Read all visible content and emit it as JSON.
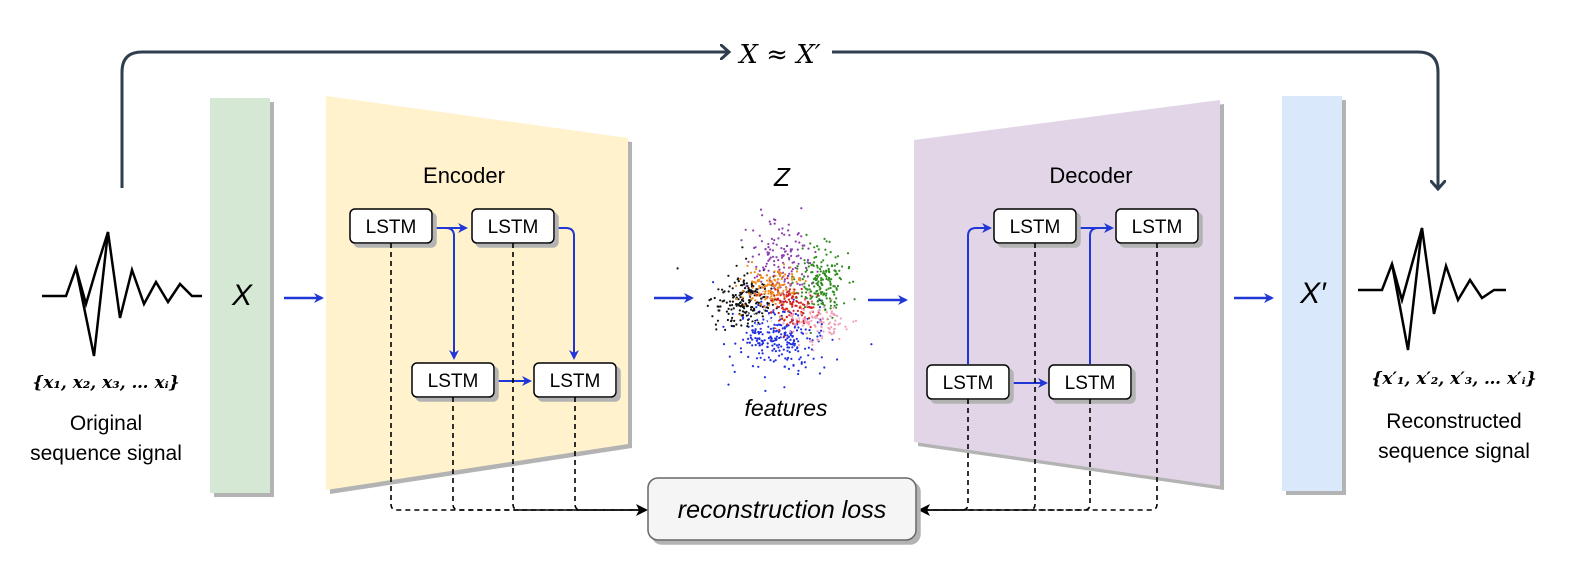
{
  "top_relation": "X ≈ X′",
  "encoder": {
    "title": "Encoder",
    "cells": [
      "LSTM",
      "LSTM",
      "LSTM",
      "LSTM"
    ]
  },
  "decoder": {
    "title": "Decoder",
    "cells": [
      "LSTM",
      "LSTM",
      "LSTM",
      "LSTM"
    ]
  },
  "input_block": {
    "label": "X"
  },
  "output_block": {
    "label": "X′"
  },
  "latent": {
    "symbol": "Z",
    "caption": "features"
  },
  "loss": {
    "label": "reconstruction loss"
  },
  "original": {
    "sequence": "{x₁, x₂, x₃, … xᵢ}",
    "caption_line1": "Original",
    "caption_line2": "sequence signal"
  },
  "reconstructed": {
    "sequence": "{x′₁, x′₂, x′₃, … x′ᵢ}",
    "caption_line1": "Reconstructed",
    "caption_line2": "sequence signal"
  },
  "colors": {
    "input_block": "#d5e8d4",
    "encoder": "#fff2cc",
    "decoder": "#e1d5e7",
    "output_block": "#dae8fc",
    "flow_arrow": "#2036d6",
    "loop_arrow": "#2f3e4e"
  }
}
